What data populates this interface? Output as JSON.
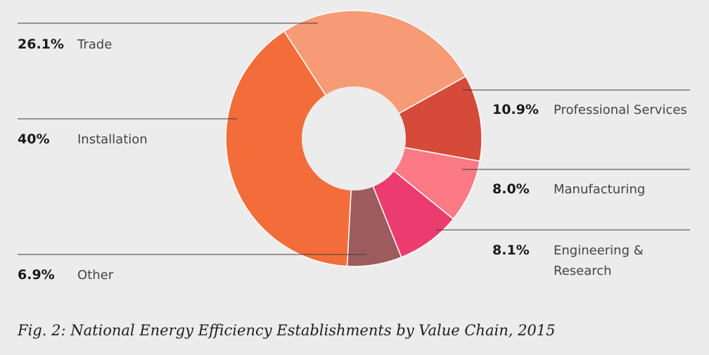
{
  "chart_data": {
    "type": "pie",
    "donut": true,
    "caption": "Fig. 2: National Energy Efficiency Establishments by Value Chain, 2015",
    "slices": [
      {
        "label": "Trade",
        "value_label": "26.1%",
        "value": 26.1,
        "color": "#f79b76"
      },
      {
        "label": "Professional Services",
        "value_label": "10.9%",
        "value": 10.9,
        "color": "#d64a3a"
      },
      {
        "label": "Manufacturing",
        "value_label": "8.0%",
        "value": 8.0,
        "color": "#fb7a86"
      },
      {
        "label": "Engineering & Research",
        "label_lines": [
          "Engineering &",
          "Research"
        ],
        "value_label": "8.1%",
        "value": 8.1,
        "color": "#eb3b6f"
      },
      {
        "label": "Other",
        "value_label": "6.9%",
        "value": 6.9,
        "color": "#9e5b5e"
      },
      {
        "label": "Installation",
        "value_label": "40%",
        "value": 40,
        "color": "#f26d3a"
      }
    ]
  }
}
